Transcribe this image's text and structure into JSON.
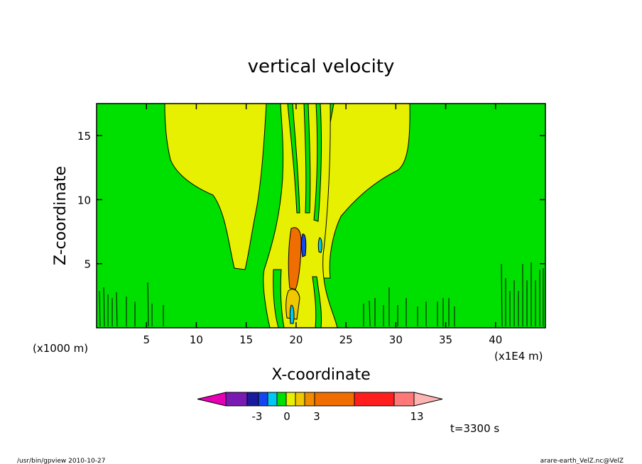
{
  "chart_data": {
    "type": "heatmap",
    "title": "vertical velocity",
    "xlabel": "X-coordinate",
    "ylabel": "Z-coordinate",
    "x_unit_left": "(x1000 m)",
    "x_unit_right": "(x1E4 m)",
    "xlim": [
      0,
      45
    ],
    "ylim": [
      0,
      17.5
    ],
    "x_ticks": [
      "5",
      "10",
      "15",
      "20",
      "25",
      "30",
      "35",
      "40"
    ],
    "y_ticks": [
      "5",
      "10",
      "15"
    ],
    "colorbar": {
      "colors": [
        "#e600b4",
        "#7a1ab4",
        "#1a1a9e",
        "#1446f0",
        "#00c8f0",
        "#00e000",
        "#e6f000",
        "#f0c800",
        "#f08c00",
        "#f06e00",
        "#ff1e1e",
        "#ff7878",
        "#ffb4b4"
      ],
      "labels": [
        "-3",
        "0",
        "3",
        "13"
      ]
    },
    "annotation": "t=3300 s"
  },
  "footer": {
    "left": "/usr/bin/gpview   2010-10-27",
    "right": "arare-earth_VelZ.nc@VelZ"
  }
}
